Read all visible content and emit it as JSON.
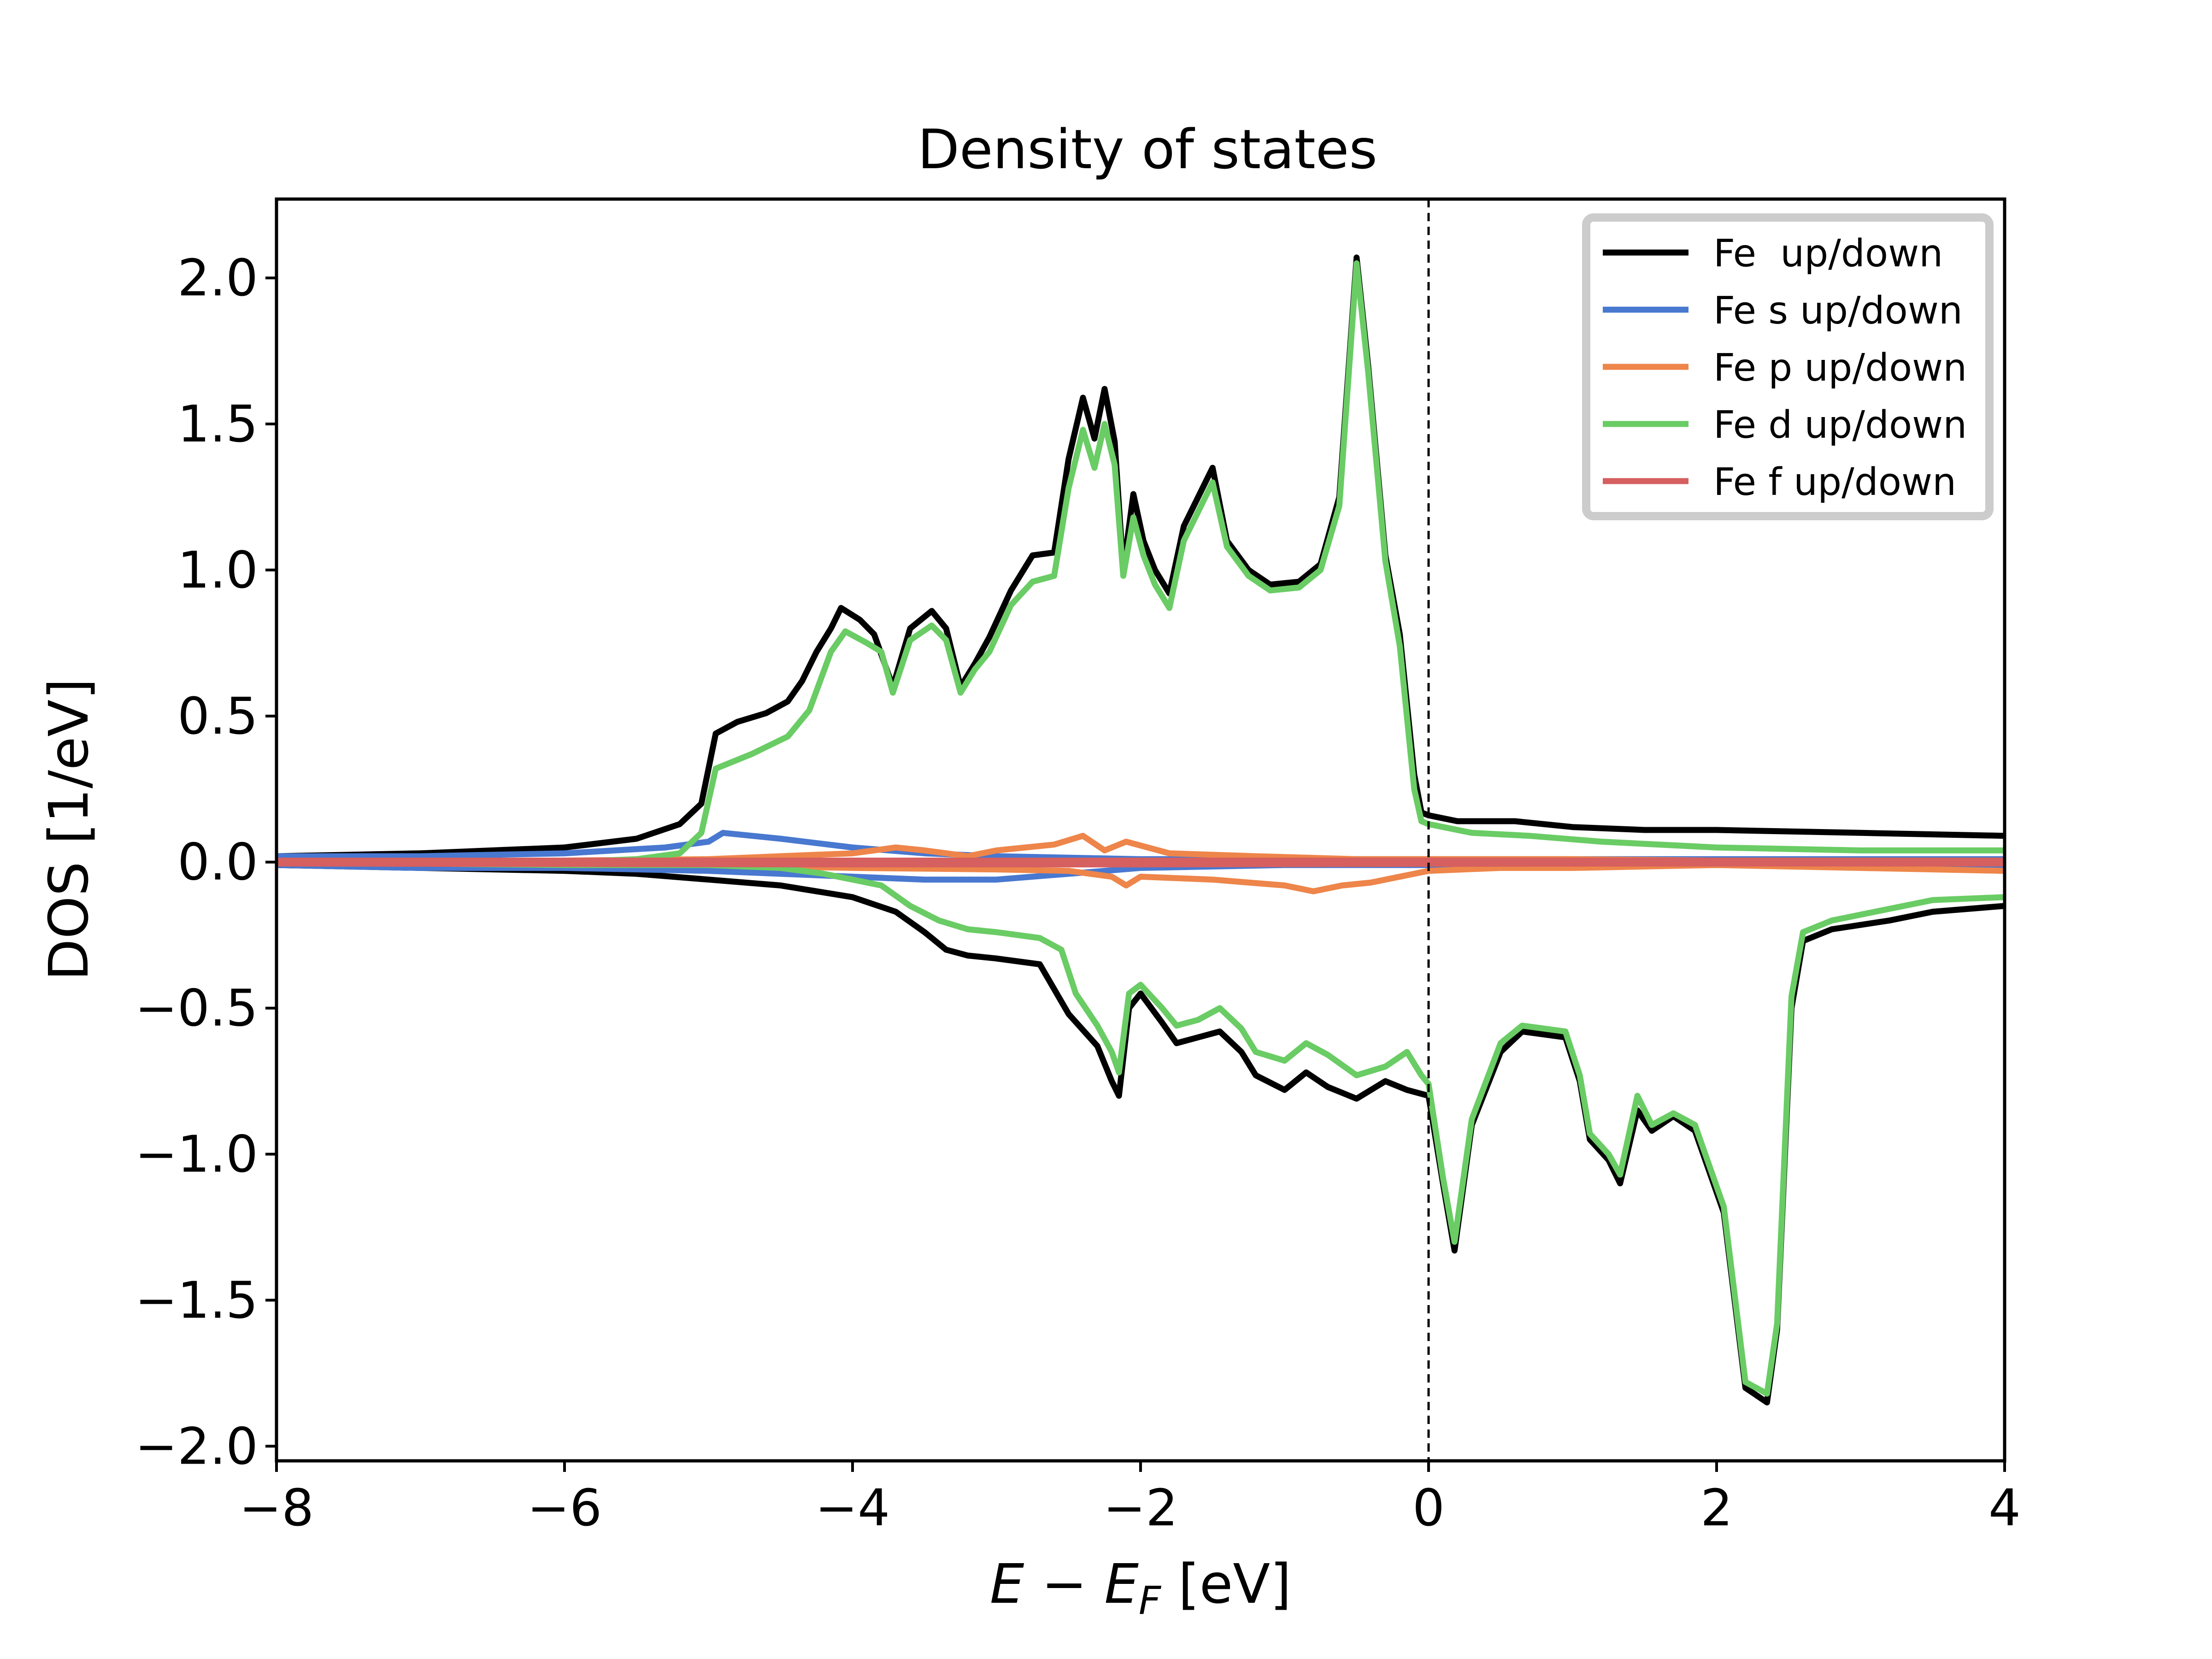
{
  "chart_data": {
    "type": "line",
    "title": "Density of states",
    "xlabel": "E − E_F [eV]",
    "xlabel_parts": {
      "main": "E − E",
      "sub": "F",
      "unit": " [eV]"
    },
    "ylabel": "DOS [1/eV]",
    "xlim": [
      -8,
      4
    ],
    "ylim": [
      -2.05,
      2.27
    ],
    "xticks": [
      -8,
      -6,
      -4,
      -2,
      0,
      2,
      4
    ],
    "xtick_labels": [
      "−8",
      "−6",
      "−4",
      "−2",
      "0",
      "2",
      "4"
    ],
    "yticks": [
      -2.0,
      -1.5,
      -1.0,
      -0.5,
      0.0,
      0.5,
      1.0,
      1.5,
      2.0
    ],
    "ytick_labels": [
      "−2.0",
      "−1.5",
      "−1.0",
      "−0.5",
      "0.0",
      "0.5",
      "1.0",
      "1.5",
      "2.0"
    ],
    "grid": false,
    "legend_position": "top-right",
    "fermi_level_x": 0,
    "series": [
      {
        "name": "Fe  up/down",
        "color": "#000000",
        "up": [
          [
            -8,
            0.02
          ],
          [
            -7,
            0.03
          ],
          [
            -6,
            0.05
          ],
          [
            -5.5,
            0.08
          ],
          [
            -5.2,
            0.13
          ],
          [
            -5.05,
            0.2
          ],
          [
            -4.95,
            0.44
          ],
          [
            -4.8,
            0.48
          ],
          [
            -4.6,
            0.51
          ],
          [
            -4.45,
            0.55
          ],
          [
            -4.35,
            0.62
          ],
          [
            -4.25,
            0.72
          ],
          [
            -4.15,
            0.8
          ],
          [
            -4.08,
            0.87
          ],
          [
            -3.95,
            0.83
          ],
          [
            -3.85,
            0.78
          ],
          [
            -3.72,
            0.6
          ],
          [
            -3.6,
            0.8
          ],
          [
            -3.45,
            0.86
          ],
          [
            -3.35,
            0.8
          ],
          [
            -3.25,
            0.6
          ],
          [
            -3.15,
            0.68
          ],
          [
            -3.05,
            0.77
          ],
          [
            -2.9,
            0.93
          ],
          [
            -2.75,
            1.05
          ],
          [
            -2.6,
            1.06
          ],
          [
            -2.5,
            1.38
          ],
          [
            -2.4,
            1.59
          ],
          [
            -2.32,
            1.45
          ],
          [
            -2.25,
            1.62
          ],
          [
            -2.18,
            1.44
          ],
          [
            -2.12,
            1.0
          ],
          [
            -2.05,
            1.26
          ],
          [
            -1.98,
            1.1
          ],
          [
            -1.9,
            1.0
          ],
          [
            -1.8,
            0.92
          ],
          [
            -1.7,
            1.15
          ],
          [
            -1.55,
            1.3
          ],
          [
            -1.5,
            1.35
          ],
          [
            -1.4,
            1.1
          ],
          [
            -1.25,
            1.0
          ],
          [
            -1.1,
            0.95
          ],
          [
            -0.9,
            0.96
          ],
          [
            -0.75,
            1.02
          ],
          [
            -0.62,
            1.25
          ],
          [
            -0.5,
            2.07
          ],
          [
            -0.42,
            1.7
          ],
          [
            -0.3,
            1.05
          ],
          [
            -0.2,
            0.78
          ],
          [
            -0.1,
            0.3
          ],
          [
            -0.05,
            0.17
          ],
          [
            0,
            0.16
          ],
          [
            0.2,
            0.14
          ],
          [
            0.6,
            0.14
          ],
          [
            1,
            0.12
          ],
          [
            1.5,
            0.11
          ],
          [
            2,
            0.11
          ],
          [
            3,
            0.1
          ],
          [
            4,
            0.09
          ]
        ],
        "down": [
          [
            -8,
            -0.01
          ],
          [
            -7,
            -0.02
          ],
          [
            -6,
            -0.03
          ],
          [
            -5.5,
            -0.04
          ],
          [
            -5,
            -0.06
          ],
          [
            -4.5,
            -0.08
          ],
          [
            -4,
            -0.12
          ],
          [
            -3.7,
            -0.17
          ],
          [
            -3.5,
            -0.24
          ],
          [
            -3.35,
            -0.3
          ],
          [
            -3.2,
            -0.32
          ],
          [
            -3,
            -0.33
          ],
          [
            -2.7,
            -0.35
          ],
          [
            -2.5,
            -0.52
          ],
          [
            -2.3,
            -0.63
          ],
          [
            -2.2,
            -0.75
          ],
          [
            -2.15,
            -0.8
          ],
          [
            -2.08,
            -0.5
          ],
          [
            -2.0,
            -0.45
          ],
          [
            -1.85,
            -0.55
          ],
          [
            -1.75,
            -0.62
          ],
          [
            -1.6,
            -0.6
          ],
          [
            -1.45,
            -0.58
          ],
          [
            -1.3,
            -0.65
          ],
          [
            -1.2,
            -0.73
          ],
          [
            -1.0,
            -0.78
          ],
          [
            -0.85,
            -0.72
          ],
          [
            -0.7,
            -0.77
          ],
          [
            -0.5,
            -0.81
          ],
          [
            -0.3,
            -0.75
          ],
          [
            -0.15,
            -0.78
          ],
          [
            0,
            -0.8
          ],
          [
            0.1,
            -1.1
          ],
          [
            0.18,
            -1.33
          ],
          [
            0.3,
            -0.9
          ],
          [
            0.5,
            -0.65
          ],
          [
            0.65,
            -0.58
          ],
          [
            0.95,
            -0.6
          ],
          [
            1.05,
            -0.75
          ],
          [
            1.12,
            -0.95
          ],
          [
            1.25,
            -1.02
          ],
          [
            1.33,
            -1.1
          ],
          [
            1.45,
            -0.85
          ],
          [
            1.55,
            -0.92
          ],
          [
            1.7,
            -0.87
          ],
          [
            1.85,
            -0.92
          ],
          [
            2.05,
            -1.2
          ],
          [
            2.2,
            -1.8
          ],
          [
            2.35,
            -1.85
          ],
          [
            2.42,
            -1.6
          ],
          [
            2.52,
            -0.5
          ],
          [
            2.6,
            -0.27
          ],
          [
            2.8,
            -0.23
          ],
          [
            3.2,
            -0.2
          ],
          [
            3.5,
            -0.17
          ],
          [
            4,
            -0.15
          ]
        ]
      },
      {
        "name": "Fe s up/down",
        "color": "#4878d0",
        "up": [
          [
            -8,
            0.02
          ],
          [
            -7,
            0.02
          ],
          [
            -6,
            0.03
          ],
          [
            -5.3,
            0.05
          ],
          [
            -5.0,
            0.07
          ],
          [
            -4.9,
            0.1
          ],
          [
            -4.5,
            0.08
          ],
          [
            -4,
            0.05
          ],
          [
            -3.5,
            0.03
          ],
          [
            -3,
            0.02
          ],
          [
            -2,
            0.01
          ],
          [
            0,
            0.01
          ],
          [
            2,
            0.01
          ],
          [
            4,
            0.01
          ]
        ],
        "down": [
          [
            -8,
            -0.01
          ],
          [
            -7,
            -0.02
          ],
          [
            -6,
            -0.02
          ],
          [
            -5,
            -0.03
          ],
          [
            -4.5,
            -0.04
          ],
          [
            -4,
            -0.05
          ],
          [
            -3.5,
            -0.06
          ],
          [
            -3,
            -0.06
          ],
          [
            -2.5,
            -0.04
          ],
          [
            -2,
            -0.02
          ],
          [
            -1,
            -0.01
          ],
          [
            0,
            -0.01
          ],
          [
            2,
            -0.01
          ],
          [
            4,
            -0.01
          ]
        ]
      },
      {
        "name": "Fe p up/down",
        "color": "#ee854a",
        "up": [
          [
            -8,
            0.0
          ],
          [
            -6,
            0.005
          ],
          [
            -5,
            0.01
          ],
          [
            -4.5,
            0.02
          ],
          [
            -4,
            0.03
          ],
          [
            -3.7,
            0.05
          ],
          [
            -3.5,
            0.04
          ],
          [
            -3.2,
            0.02
          ],
          [
            -3,
            0.04
          ],
          [
            -2.6,
            0.06
          ],
          [
            -2.4,
            0.09
          ],
          [
            -2.25,
            0.04
          ],
          [
            -2.1,
            0.07
          ],
          [
            -1.8,
            0.03
          ],
          [
            -1.2,
            0.02
          ],
          [
            -0.5,
            0.01
          ],
          [
            0,
            0.01
          ],
          [
            1,
            0.01
          ],
          [
            2,
            0.005
          ],
          [
            4,
            0.005
          ]
        ],
        "down": [
          [
            -8,
            0.0
          ],
          [
            -6,
            -0.005
          ],
          [
            -5,
            -0.01
          ],
          [
            -4,
            -0.02
          ],
          [
            -3,
            -0.025
          ],
          [
            -2.5,
            -0.03
          ],
          [
            -2.2,
            -0.05
          ],
          [
            -2.1,
            -0.08
          ],
          [
            -2,
            -0.05
          ],
          [
            -1.5,
            -0.06
          ],
          [
            -1,
            -0.08
          ],
          [
            -0.8,
            -0.1
          ],
          [
            -0.6,
            -0.08
          ],
          [
            -0.4,
            -0.07
          ],
          [
            0,
            -0.03
          ],
          [
            0.5,
            -0.02
          ],
          [
            1,
            -0.02
          ],
          [
            2,
            -0.01
          ],
          [
            3,
            -0.02
          ],
          [
            4,
            -0.03
          ]
        ]
      },
      {
        "name": "Fe d up/down",
        "color": "#6acc64",
        "up": [
          [
            -8,
            0.0
          ],
          [
            -6,
            0.0
          ],
          [
            -5.5,
            0.01
          ],
          [
            -5.2,
            0.03
          ],
          [
            -5.05,
            0.1
          ],
          [
            -4.95,
            0.32
          ],
          [
            -4.7,
            0.37
          ],
          [
            -4.45,
            0.43
          ],
          [
            -4.3,
            0.52
          ],
          [
            -4.15,
            0.72
          ],
          [
            -4.05,
            0.79
          ],
          [
            -3.9,
            0.75
          ],
          [
            -3.8,
            0.72
          ],
          [
            -3.72,
            0.58
          ],
          [
            -3.6,
            0.76
          ],
          [
            -3.45,
            0.81
          ],
          [
            -3.35,
            0.76
          ],
          [
            -3.25,
            0.58
          ],
          [
            -3.15,
            0.66
          ],
          [
            -3.05,
            0.72
          ],
          [
            -2.9,
            0.88
          ],
          [
            -2.75,
            0.96
          ],
          [
            -2.6,
            0.98
          ],
          [
            -2.5,
            1.28
          ],
          [
            -2.4,
            1.48
          ],
          [
            -2.32,
            1.35
          ],
          [
            -2.25,
            1.5
          ],
          [
            -2.18,
            1.36
          ],
          [
            -2.12,
            0.98
          ],
          [
            -2.05,
            1.18
          ],
          [
            -1.98,
            1.05
          ],
          [
            -1.9,
            0.95
          ],
          [
            -1.8,
            0.87
          ],
          [
            -1.7,
            1.1
          ],
          [
            -1.55,
            1.25
          ],
          [
            -1.5,
            1.3
          ],
          [
            -1.4,
            1.08
          ],
          [
            -1.25,
            0.98
          ],
          [
            -1.1,
            0.93
          ],
          [
            -0.9,
            0.94
          ],
          [
            -0.75,
            1.0
          ],
          [
            -0.62,
            1.22
          ],
          [
            -0.5,
            2.05
          ],
          [
            -0.42,
            1.68
          ],
          [
            -0.3,
            1.03
          ],
          [
            -0.2,
            0.74
          ],
          [
            -0.1,
            0.25
          ],
          [
            -0.05,
            0.14
          ],
          [
            0,
            0.13
          ],
          [
            0.3,
            0.1
          ],
          [
            0.7,
            0.09
          ],
          [
            1.2,
            0.07
          ],
          [
            2,
            0.05
          ],
          [
            3,
            0.04
          ],
          [
            4,
            0.04
          ]
        ],
        "down": [
          [
            -8,
            0.0
          ],
          [
            -6,
            -0.01
          ],
          [
            -5,
            -0.01
          ],
          [
            -4.5,
            -0.02
          ],
          [
            -4.2,
            -0.04
          ],
          [
            -3.8,
            -0.08
          ],
          [
            -3.6,
            -0.15
          ],
          [
            -3.4,
            -0.2
          ],
          [
            -3.2,
            -0.23
          ],
          [
            -3.0,
            -0.24
          ],
          [
            -2.7,
            -0.26
          ],
          [
            -2.55,
            -0.3
          ],
          [
            -2.45,
            -0.45
          ],
          [
            -2.3,
            -0.56
          ],
          [
            -2.2,
            -0.65
          ],
          [
            -2.15,
            -0.72
          ],
          [
            -2.08,
            -0.45
          ],
          [
            -2.0,
            -0.42
          ],
          [
            -1.85,
            -0.5
          ],
          [
            -1.75,
            -0.56
          ],
          [
            -1.6,
            -0.54
          ],
          [
            -1.45,
            -0.5
          ],
          [
            -1.3,
            -0.57
          ],
          [
            -1.2,
            -0.65
          ],
          [
            -1.0,
            -0.68
          ],
          [
            -0.85,
            -0.62
          ],
          [
            -0.7,
            -0.66
          ],
          [
            -0.5,
            -0.73
          ],
          [
            -0.3,
            -0.7
          ],
          [
            -0.15,
            -0.65
          ],
          [
            -0.05,
            -0.73
          ],
          [
            0,
            -0.76
          ],
          [
            0.1,
            -1.08
          ],
          [
            0.18,
            -1.3
          ],
          [
            0.3,
            -0.88
          ],
          [
            0.5,
            -0.62
          ],
          [
            0.65,
            -0.56
          ],
          [
            0.95,
            -0.58
          ],
          [
            1.05,
            -0.73
          ],
          [
            1.12,
            -0.93
          ],
          [
            1.25,
            -1.0
          ],
          [
            1.33,
            -1.07
          ],
          [
            1.45,
            -0.8
          ],
          [
            1.55,
            -0.9
          ],
          [
            1.7,
            -0.86
          ],
          [
            1.85,
            -0.9
          ],
          [
            2.05,
            -1.18
          ],
          [
            2.2,
            -1.78
          ],
          [
            2.35,
            -1.82
          ],
          [
            2.42,
            -1.58
          ],
          [
            2.52,
            -0.46
          ],
          [
            2.6,
            -0.24
          ],
          [
            2.8,
            -0.2
          ],
          [
            3.2,
            -0.16
          ],
          [
            3.5,
            -0.13
          ],
          [
            4,
            -0.12
          ]
        ]
      },
      {
        "name": "Fe f up/down",
        "color": "#d65f5f",
        "up": [
          [
            -8,
            0.005
          ],
          [
            -4,
            0.005
          ],
          [
            -2,
            0.005
          ],
          [
            0,
            0.005
          ],
          [
            2,
            0.005
          ],
          [
            4,
            0.005
          ]
        ],
        "down": [
          [
            -8,
            -0.005
          ],
          [
            -4,
            -0.008
          ],
          [
            -2,
            -0.008
          ],
          [
            0,
            -0.006
          ],
          [
            2,
            -0.005
          ],
          [
            4,
            -0.005
          ]
        ]
      }
    ]
  }
}
